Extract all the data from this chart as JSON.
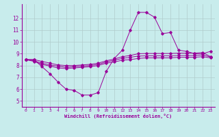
{
  "xlabel": "Windchill (Refroidissement éolien,°C)",
  "bg_color": "#c8ecec",
  "line_color": "#990099",
  "grid_color": "#b0cccc",
  "xlim": [
    -0.5,
    23.5
  ],
  "ylim": [
    4.5,
    13.2
  ],
  "xticks": [
    0,
    1,
    2,
    3,
    4,
    5,
    6,
    7,
    8,
    9,
    10,
    11,
    12,
    13,
    14,
    15,
    16,
    17,
    18,
    19,
    20,
    21,
    22,
    23
  ],
  "yticks": [
    5,
    6,
    7,
    8,
    9,
    10,
    11,
    12
  ],
  "series1_x": [
    0,
    1,
    2,
    3,
    4,
    5,
    6,
    7,
    8,
    9,
    10,
    11,
    12,
    13,
    14,
    15,
    16,
    17,
    18,
    19,
    20,
    21,
    22,
    23
  ],
  "series1_y": [
    8.5,
    8.5,
    7.9,
    7.3,
    6.6,
    6.0,
    5.9,
    5.5,
    5.5,
    5.7,
    7.5,
    8.6,
    9.3,
    11.0,
    12.5,
    12.5,
    12.1,
    10.7,
    10.8,
    9.3,
    9.2,
    9.0,
    9.0,
    9.2
  ],
  "series2_x": [
    0,
    1,
    2,
    3,
    4,
    5,
    6,
    7,
    8,
    9,
    10,
    11,
    12,
    13,
    14,
    15,
    16,
    17,
    18,
    19,
    20,
    21,
    22,
    23
  ],
  "series2_y": [
    8.5,
    8.35,
    8.1,
    7.95,
    7.8,
    7.75,
    7.8,
    7.85,
    7.9,
    8.0,
    8.2,
    8.3,
    8.45,
    8.5,
    8.6,
    8.65,
    8.65,
    8.65,
    8.65,
    8.7,
    8.7,
    8.7,
    8.75,
    8.65
  ],
  "series3_x": [
    0,
    1,
    2,
    3,
    4,
    5,
    6,
    7,
    8,
    9,
    10,
    11,
    12,
    13,
    14,
    15,
    16,
    17,
    18,
    19,
    20,
    21,
    22,
    23
  ],
  "series3_y": [
    8.5,
    8.4,
    8.2,
    8.05,
    7.95,
    7.85,
    7.9,
    7.95,
    8.0,
    8.1,
    8.3,
    8.45,
    8.6,
    8.7,
    8.8,
    8.82,
    8.82,
    8.82,
    8.82,
    8.85,
    8.85,
    8.85,
    8.9,
    8.72
  ],
  "series4_x": [
    0,
    1,
    2,
    3,
    4,
    5,
    6,
    7,
    8,
    9,
    10,
    11,
    12,
    13,
    14,
    15,
    16,
    17,
    18,
    19,
    20,
    21,
    22,
    23
  ],
  "series4_y": [
    8.5,
    8.5,
    8.35,
    8.2,
    8.05,
    8.0,
    8.0,
    8.05,
    8.1,
    8.2,
    8.4,
    8.55,
    8.75,
    8.85,
    9.0,
    9.02,
    9.02,
    9.02,
    9.02,
    9.05,
    9.05,
    9.05,
    9.1,
    8.75
  ]
}
